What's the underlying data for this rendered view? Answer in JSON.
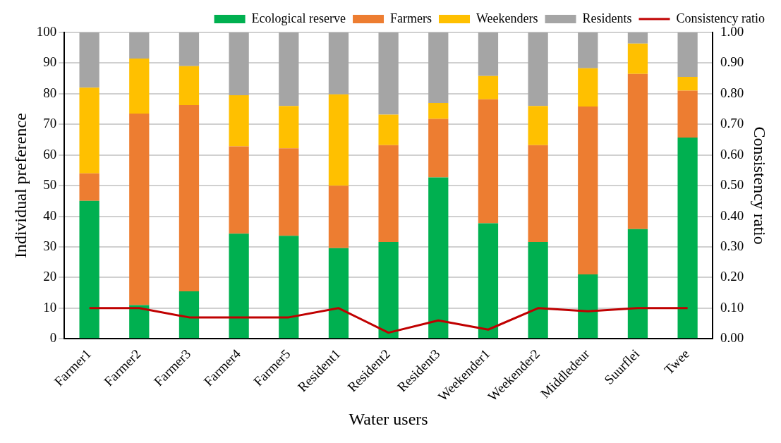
{
  "chart_data": {
    "type": "bar",
    "stacked": true,
    "xlabel": "Water users",
    "ylabel": "Individual preference",
    "y2label": "Consistency ratio",
    "categories": [
      "Farmer1",
      "Farmer2",
      "Farmer3",
      "Farmer4",
      "Farmer5",
      "Resident1",
      "Resident2",
      "Resident3",
      "Weekender1",
      "Weekender2",
      "Middledeur",
      "Suurflei",
      "Twee"
    ],
    "series": [
      {
        "name": "Ecological reserve",
        "color": "#00b050",
        "values": [
          45,
          11,
          15.5,
          34.3,
          33.6,
          29.6,
          31.6,
          52.7,
          37.7,
          31.6,
          21,
          35.8,
          65.7
        ]
      },
      {
        "name": "Farmers",
        "color": "#ed7d31",
        "values": [
          9,
          62.5,
          60.8,
          28.5,
          28.6,
          20.4,
          31.6,
          19.1,
          40.5,
          31.6,
          54.8,
          50.7,
          15.3
        ]
      },
      {
        "name": "Weekenders",
        "color": "#ffc000",
        "values": [
          28,
          18,
          12.7,
          16.7,
          13.8,
          29.8,
          10,
          5.2,
          7.6,
          12.8,
          12.5,
          9.9,
          4.5
        ]
      },
      {
        "name": "Residents",
        "color": "#a5a5a5",
        "values": [
          18,
          8.5,
          11,
          20.5,
          24,
          20.2,
          26.8,
          23,
          14.2,
          24,
          11.7,
          3.6,
          14.5
        ]
      },
      {
        "name": "Consistency ratio",
        "type": "line",
        "axis": "y2",
        "color": "#c00000",
        "values": [
          0.1,
          0.1,
          0.07,
          0.07,
          0.07,
          0.1,
          0.02,
          0.06,
          0.03,
          0.1,
          0.09,
          0.1,
          0.1
        ]
      }
    ],
    "ylim": [
      0,
      100
    ],
    "yticks": [
      0,
      10,
      20,
      30,
      40,
      50,
      60,
      70,
      80,
      90,
      100
    ],
    "y2lim": [
      0,
      1
    ],
    "y2ticks": [
      {
        "value": 0,
        "label": "0.00"
      },
      {
        "value": 0.1,
        "label": "0.10"
      },
      {
        "value": 0.2,
        "label": "0.20"
      },
      {
        "value": 0.3,
        "label": "0.30"
      },
      {
        "value": 0.4,
        "label": "0.40"
      },
      {
        "value": 0.5,
        "label": "0.50"
      },
      {
        "value": 0.6,
        "label": "0.60"
      },
      {
        "value": 0.7,
        "label": "0.70"
      },
      {
        "value": 0.8,
        "label": "0.80"
      },
      {
        "value": 0.9,
        "label": "0.90"
      },
      {
        "value": 1,
        "label": "1.00"
      }
    ],
    "grid": "y",
    "legend": "top",
    "marker": "none",
    "line_style": "solid"
  }
}
